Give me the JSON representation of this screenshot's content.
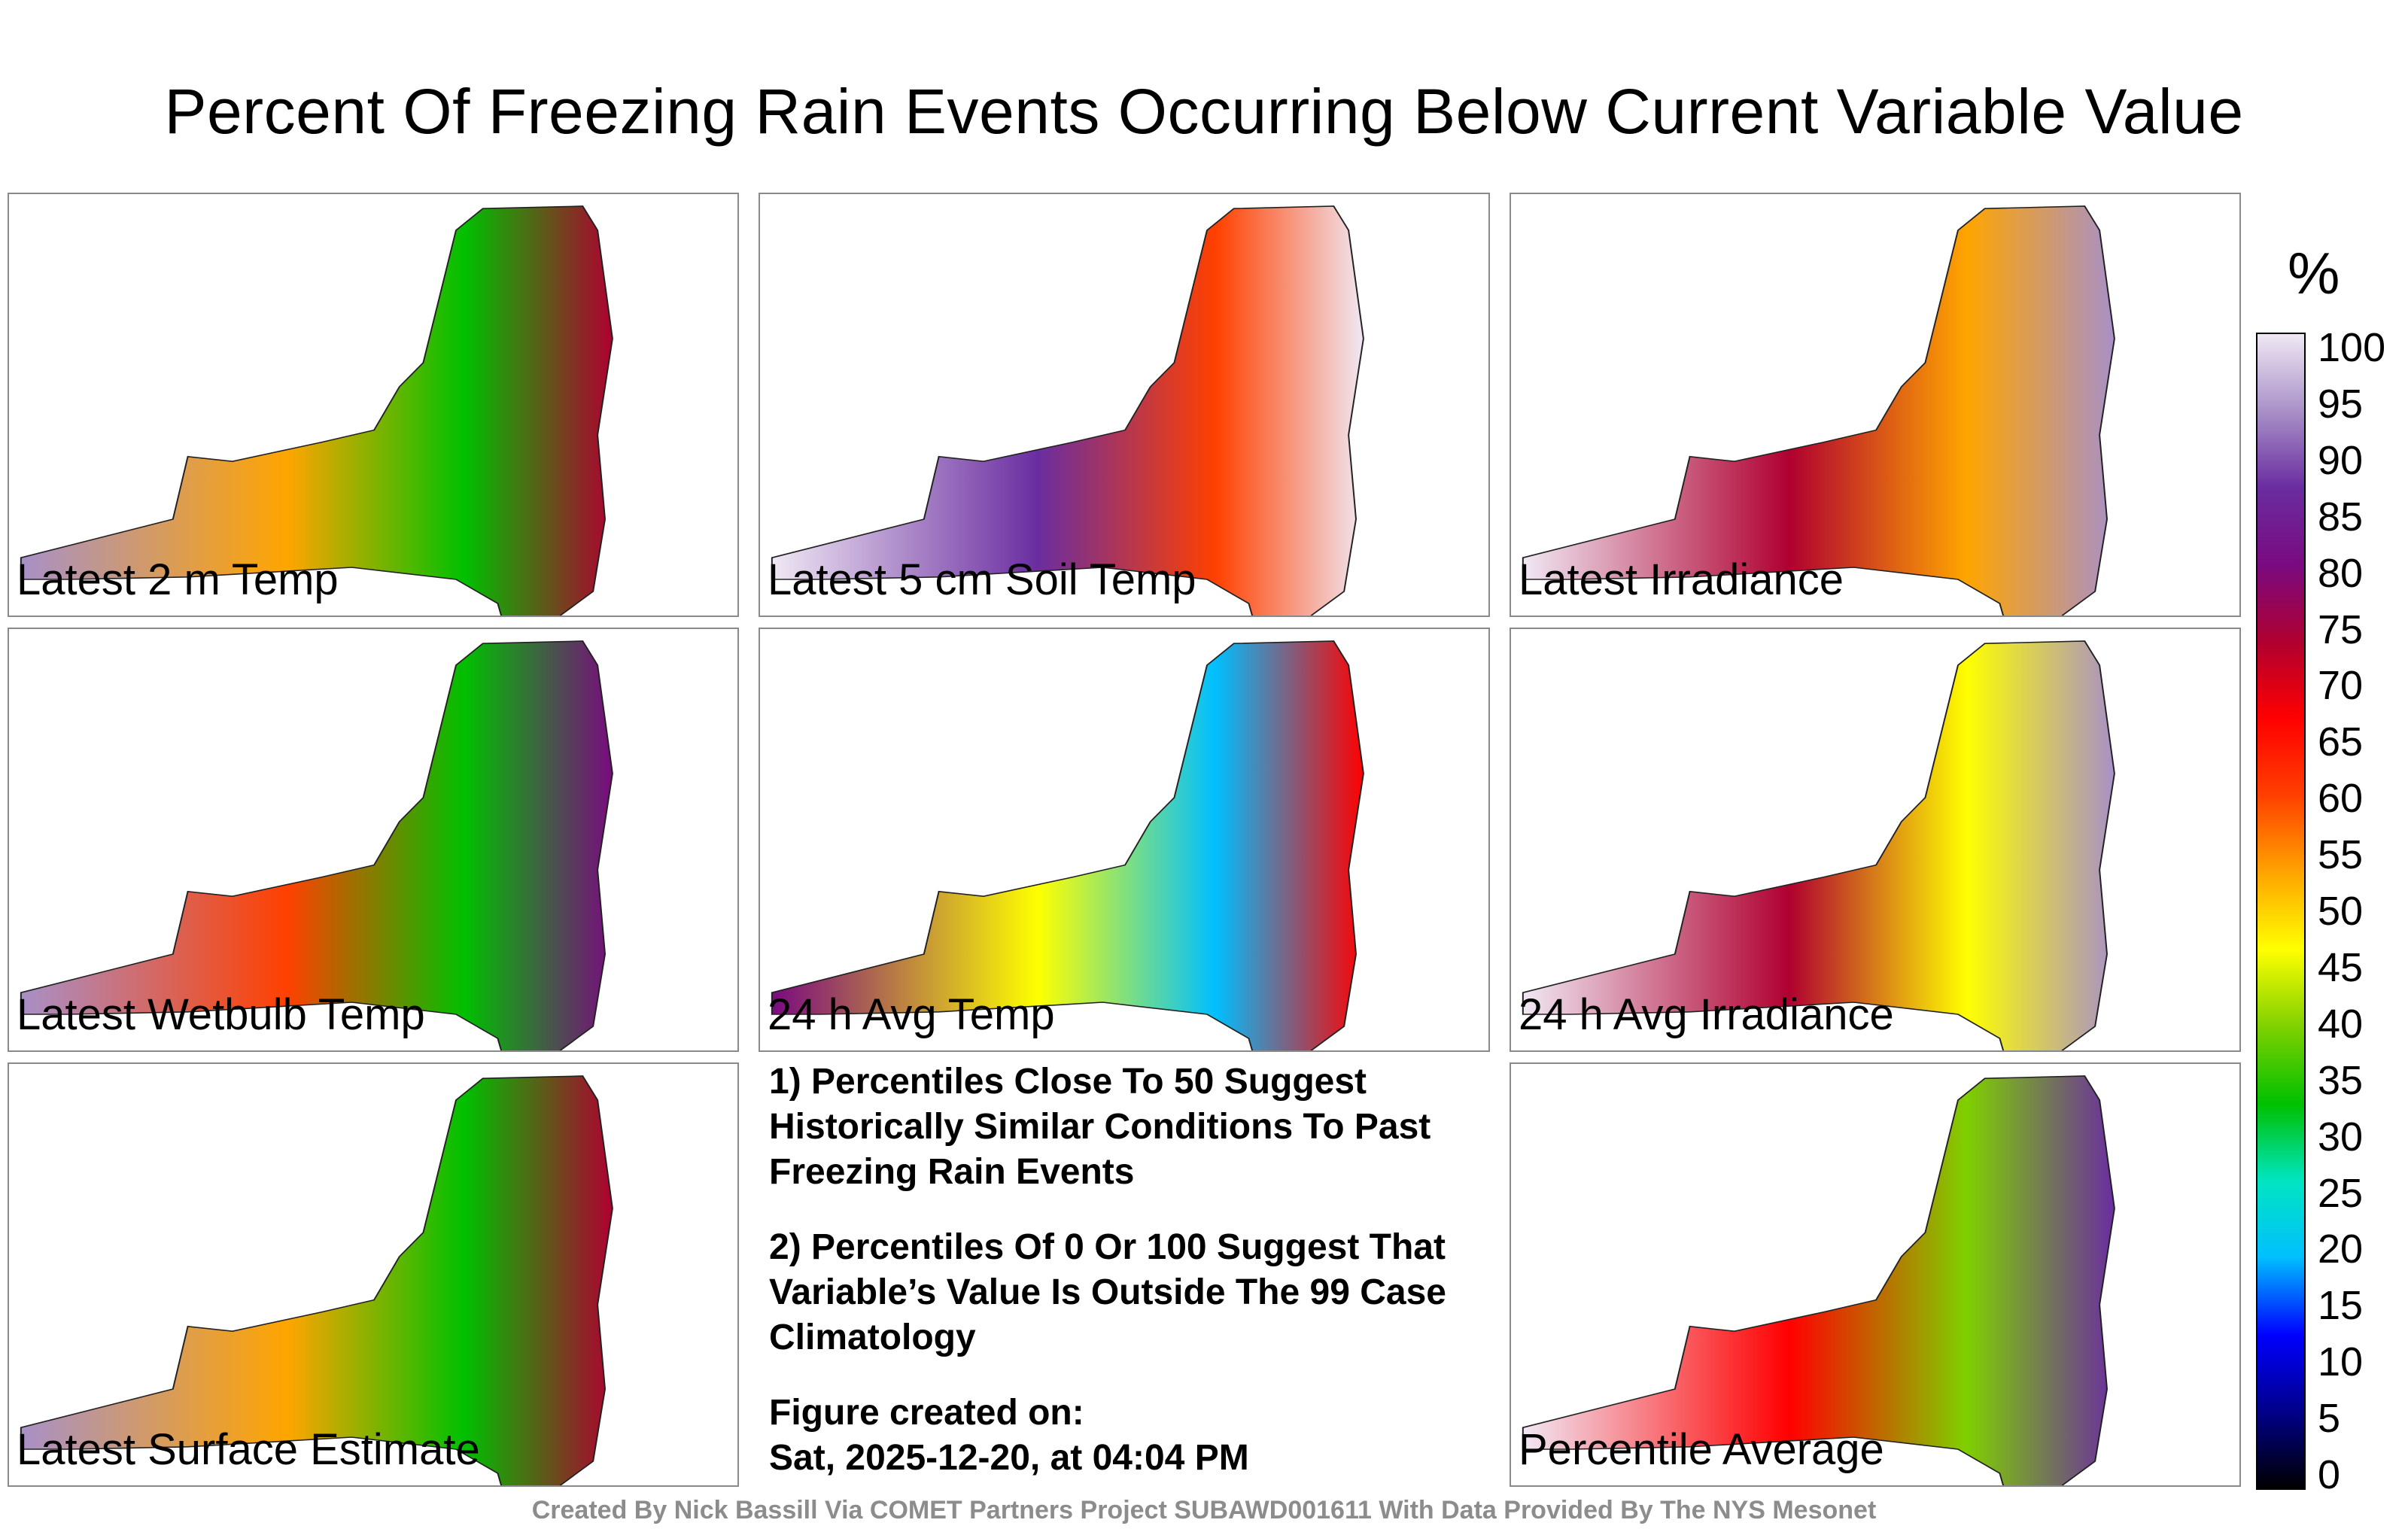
{
  "title": "Percent Of Freezing Rain Events Occurring Below Current Variable Value",
  "panels": [
    {
      "label": "Latest 2 m Temp",
      "mean": 55
    },
    {
      "label": "Latest 5 cm Soil Temp",
      "mean": 85
    },
    {
      "label": "Latest Irradiance",
      "mean": 75
    },
    {
      "label": "Latest Wetbulb Temp",
      "mean": 60
    },
    {
      "label": "24 h Avg Temp",
      "mean": 45
    },
    {
      "label": "24 h Avg Irradiance",
      "mean": 70
    },
    {
      "label": "Latest Surface Estimate",
      "mean": 55
    },
    {
      "label": "Percentile Average",
      "mean": 65
    }
  ],
  "notes": {
    "note1": "1) Percentiles Close To 50 Suggest Historically Similar Conditions To Past Freezing Rain Events",
    "note2": "2) Percentiles Of 0 Or 100 Suggest That Variable’s Value Is Outside The 99 Case Climatology",
    "created_label": "Figure created on:",
    "created_date": "Sat, 2025-12-20, at 04:04 PM"
  },
  "colorbar": {
    "unit": "%",
    "ticks": [
      "100",
      "95",
      "90",
      "85",
      "80",
      "75",
      "70",
      "65",
      "60",
      "55",
      "50",
      "45",
      "40",
      "35",
      "30",
      "25",
      "20",
      "15",
      "10",
      "5",
      "0"
    ],
    "stops": [
      "#000000",
      "#00008b",
      "#0000ff",
      "#00bfff",
      "#00e5c0",
      "#00c000",
      "#7fd000",
      "#ffff00",
      "#ffa500",
      "#ff4000",
      "#ff0000",
      "#b00030",
      "#7a0a80",
      "#6a2da0",
      "#a890c8",
      "#f0e8f4"
    ]
  },
  "credit": "Created By Nick Bassill Via COMET Partners Project SUBAWD001611 With Data Provided By The NYS Mesonet"
}
